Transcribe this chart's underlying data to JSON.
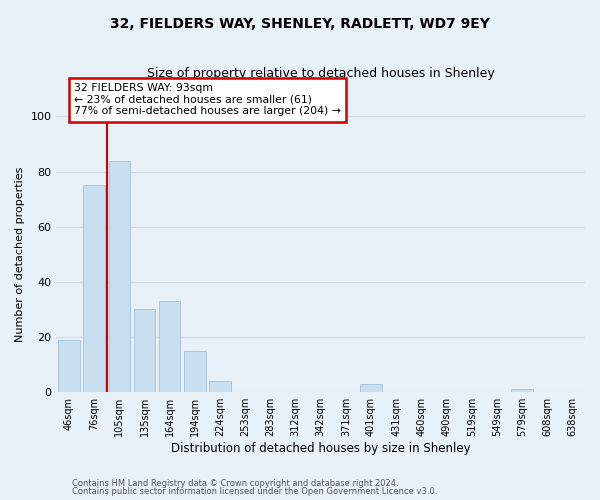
{
  "title": "32, FIELDERS WAY, SHENLEY, RADLETT, WD7 9EY",
  "subtitle": "Size of property relative to detached houses in Shenley",
  "xlabel": "Distribution of detached houses by size in Shenley",
  "ylabel": "Number of detached properties",
  "bar_labels": [
    "46sqm",
    "76sqm",
    "105sqm",
    "135sqm",
    "164sqm",
    "194sqm",
    "224sqm",
    "253sqm",
    "283sqm",
    "312sqm",
    "342sqm",
    "371sqm",
    "401sqm",
    "431sqm",
    "460sqm",
    "490sqm",
    "519sqm",
    "549sqm",
    "579sqm",
    "608sqm",
    "638sqm"
  ],
  "bar_heights": [
    19,
    75,
    84,
    30,
    33,
    15,
    4,
    0,
    0,
    0,
    0,
    0,
    3,
    0,
    0,
    0,
    0,
    0,
    1,
    0,
    0
  ],
  "bar_color": "#c9dff0",
  "bar_edge_color": "#a8c8e0",
  "marker_color": "#cc0000",
  "annotation_title": "32 FIELDERS WAY: 93sqm",
  "annotation_line1": "← 23% of detached houses are smaller (61)",
  "annotation_line2": "77% of semi-detached houses are larger (204) →",
  "annotation_box_color": "#ffffff",
  "annotation_box_edge": "#cc0000",
  "ylim": [
    0,
    100
  ],
  "yticks": [
    0,
    20,
    40,
    60,
    80,
    100
  ],
  "grid_color": "#d0dce8",
  "background_color": "#e8f0f8",
  "footnote1": "Contains HM Land Registry data © Crown copyright and database right 2024.",
  "footnote2": "Contains public sector information licensed under the Open Government Licence v3.0."
}
